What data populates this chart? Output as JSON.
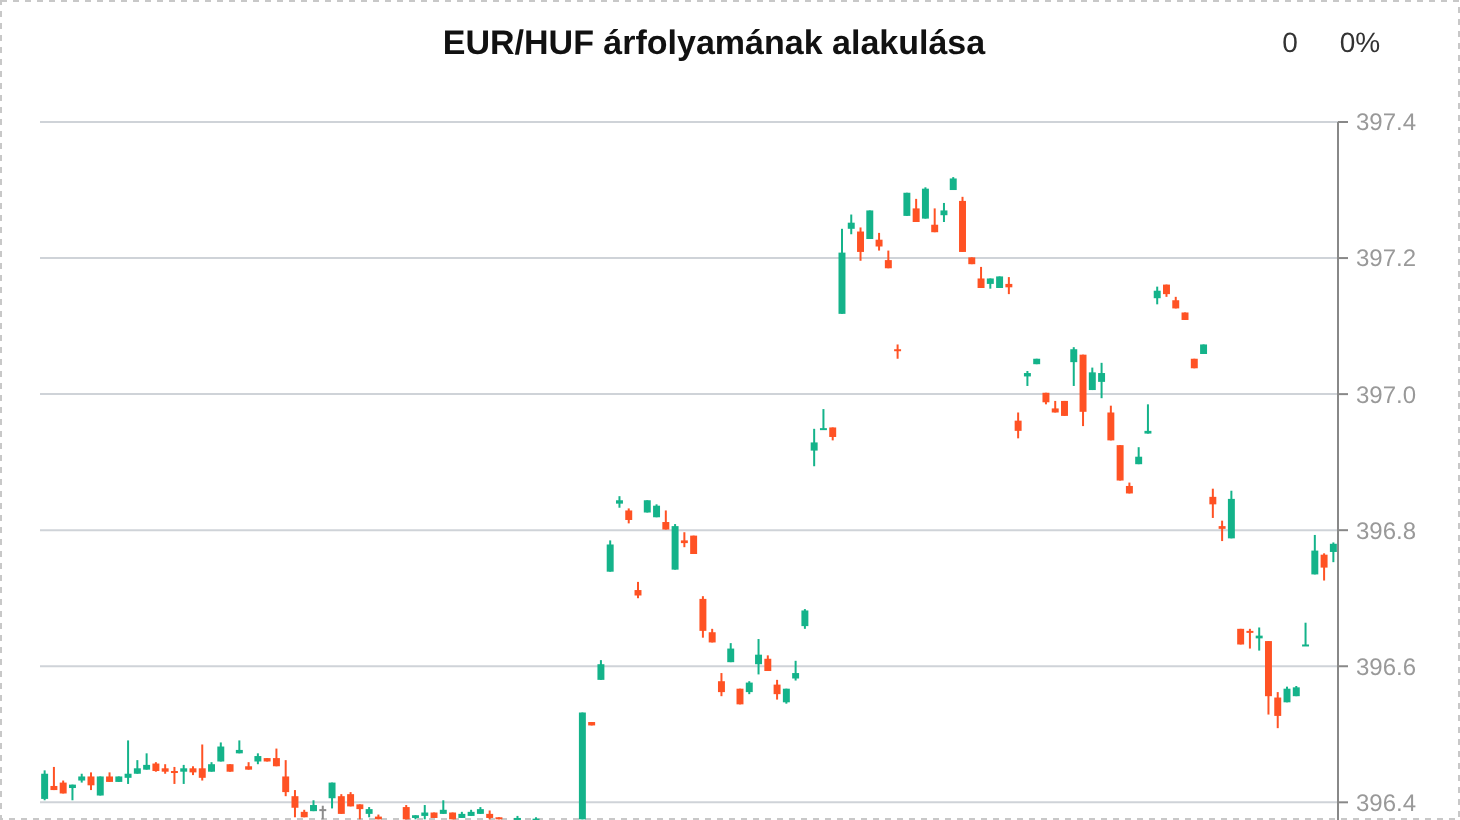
{
  "chart_data": {
    "type": "candlestick",
    "title": "EUR/HUF árfolyamának alakulása",
    "annotations": [
      "0",
      "0%"
    ],
    "categories": [
      null,
      null,
      null,
      null,
      null,
      null,
      null,
      null,
      null,
      null,
      null,
      null,
      null,
      null,
      null,
      null,
      null,
      null,
      null,
      null,
      null,
      null,
      null,
      null,
      null,
      null,
      null,
      null,
      null,
      null,
      null,
      null,
      null,
      null,
      null,
      null,
      null,
      null,
      null,
      null,
      null,
      null,
      null,
      null,
      null,
      null,
      null,
      null,
      null,
      null,
      null,
      null,
      null,
      null,
      null,
      null,
      null,
      null,
      null,
      null,
      null,
      null,
      null,
      null,
      null,
      null,
      null,
      null,
      null,
      null,
      null,
      null,
      null,
      null,
      null,
      null,
      null,
      null,
      null,
      null,
      null,
      null,
      null,
      null,
      null,
      null,
      null,
      null,
      null,
      null,
      null,
      null,
      null,
      null,
      null,
      null,
      null,
      null,
      null,
      null,
      null,
      null,
      null,
      null,
      null,
      null,
      null,
      null,
      null,
      null,
      null,
      null,
      null,
      null,
      null,
      null,
      null,
      null,
      null,
      null,
      null,
      null,
      null,
      null,
      null,
      null,
      null,
      null,
      null,
      null,
      null,
      null,
      null,
      null,
      null,
      null,
      null,
      null,
      null,
      null
    ],
    "colors": [
      "#14b38a",
      "#ff5224",
      "#ff5224",
      "#14b38a",
      "#14b38a",
      "#ff5224",
      "#14b38a",
      "#ff5224",
      "#14b38a",
      "#14b38a",
      "#14b38a",
      "#14b38a",
      "#ff5224",
      "#ff5224",
      "#ff5224",
      "#14b38a",
      "#ff5224",
      "#ff5224",
      "#14b38a",
      "#14b38a",
      "#ff5224",
      "#14b38a",
      "#ff5224",
      "#14b38a",
      "#ff5224",
      "#ff5224",
      "#ff5224",
      "#ff5224",
      "#ff5224",
      "#14b38a",
      "#8c8c8c",
      "#14b38a",
      "#ff5224",
      "#ff5224",
      "#ff5224",
      "#14b38a",
      "#ff5224",
      null,
      null,
      "#ff5224",
      "#14b38a",
      "#14b38a",
      "#ff5224",
      "#14b38a",
      "#ff5224",
      "#14b38a",
      "#14b38a",
      "#14b38a",
      "#ff5224",
      "#ff5224",
      null,
      "#14b38a",
      null,
      "#14b38a",
      null,
      null,
      null,
      null,
      "#14b38a",
      "#ff5224",
      "#14b38a",
      "#14b38a",
      "#14b38a",
      "#ff5224",
      "#ff5224",
      "#14b38a",
      "#14b38a",
      "#ff5224",
      "#14b38a",
      "#ff5224",
      "#ff5224",
      "#ff5224",
      "#ff5224",
      "#ff5224",
      "#14b38a",
      "#ff5224",
      "#14b38a",
      "#14b38a",
      "#ff5224",
      "#ff5224",
      "#14b38a",
      "#14b38a",
      "#14b38a",
      "#14b38a",
      "#14b38a",
      "#ff5224",
      "#14b38a",
      "#14b38a",
      "#ff5224",
      "#14b38a",
      "#ff5224",
      "#ff5224",
      "#ff5224",
      "#14b38a",
      "#ff5224",
      "#14b38a",
      "#ff5224",
      "#14b38a",
      "#14b38a",
      "#ff5224",
      "#ff5224",
      "#ff5224",
      "#14b38a",
      "#14b38a",
      "#ff5224",
      "#ff5224",
      "#14b38a",
      "#14b38a",
      "#ff5224",
      "#ff5224",
      "#ff5224",
      "#14b38a",
      "#ff5224",
      "#14b38a",
      "#14b38a",
      "#ff5224",
      "#ff5224",
      "#ff5224",
      "#14b38a",
      "#14b38a",
      "#14b38a",
      "#ff5224",
      "#ff5224",
      "#ff5224",
      "#ff5224",
      "#14b38a",
      "#ff5224",
      "#ff5224",
      "#14b38a",
      "#ff5224",
      "#ff5224",
      "#14b38a",
      "#ff5224",
      "#ff5224",
      "#14b38a",
      "#14b38a",
      "#14b38a",
      "#14b38a",
      "#ff5224",
      "#14b38a"
    ],
    "ohlc": [
      [
        396.405,
        396.447,
        396.403,
        396.442
      ],
      [
        396.424,
        396.452,
        396.418,
        396.418
      ],
      [
        396.429,
        396.432,
        396.413,
        396.413
      ],
      [
        396.421,
        396.426,
        396.403,
        396.426
      ],
      [
        396.432,
        396.442,
        396.429,
        396.438
      ],
      [
        396.438,
        396.444,
        396.418,
        396.425
      ],
      [
        396.41,
        396.438,
        396.41,
        396.438
      ],
      [
        396.438,
        396.444,
        396.43,
        396.43
      ],
      [
        396.43,
        396.438,
        396.43,
        396.438
      ],
      [
        396.436,
        396.491,
        396.427,
        396.442
      ],
      [
        396.442,
        396.462,
        396.442,
        396.45
      ],
      [
        396.448,
        396.472,
        396.448,
        396.455
      ],
      [
        396.457,
        396.459,
        396.445,
        396.446
      ],
      [
        396.45,
        396.456,
        396.442,
        396.445
      ],
      [
        396.446,
        396.452,
        396.427,
        396.444
      ],
      [
        396.445,
        396.455,
        396.427,
        396.45
      ],
      [
        396.45,
        396.453,
        396.44,
        396.444
      ],
      [
        396.45,
        396.485,
        396.432,
        396.436
      ],
      [
        396.445,
        396.459,
        396.445,
        396.456
      ],
      [
        396.46,
        396.488,
        396.46,
        396.482
      ],
      [
        396.456,
        396.456,
        396.445,
        396.445
      ],
      [
        396.472,
        396.491,
        396.472,
        396.477
      ],
      [
        396.453,
        396.459,
        396.448,
        396.448
      ],
      [
        396.46,
        396.472,
        396.456,
        396.468
      ],
      [
        396.465,
        396.465,
        396.46,
        396.46
      ],
      [
        396.465,
        396.479,
        396.453,
        396.453
      ],
      [
        396.438,
        396.462,
        396.409,
        396.415
      ],
      [
        396.409,
        396.418,
        396.378,
        396.392
      ],
      [
        396.386,
        396.389,
        396.378,
        396.378
      ],
      [
        396.387,
        396.403,
        396.387,
        396.396
      ],
      [
        396.39,
        396.395,
        396.375,
        396.39
      ],
      [
        396.406,
        396.429,
        396.391,
        396.429
      ],
      [
        396.409,
        396.412,
        396.383,
        396.383
      ],
      [
        396.412,
        396.415,
        396.394,
        396.394
      ],
      [
        396.397,
        396.397,
        396.375,
        396.39
      ],
      [
        396.383,
        396.393,
        396.378,
        396.39
      ],
      [
        396.379,
        396.382,
        396.375,
        396.375
      ],
      null,
      null,
      [
        396.393,
        396.396,
        396.375,
        396.375
      ],
      [
        396.377,
        396.381,
        396.375,
        396.381
      ],
      [
        396.38,
        396.396,
        396.375,
        396.385
      ],
      [
        396.385,
        396.385,
        396.377,
        396.377
      ],
      [
        396.383,
        396.403,
        396.383,
        396.389
      ],
      [
        396.385,
        396.385,
        396.375,
        396.375
      ],
      [
        396.377,
        396.386,
        396.377,
        396.383
      ],
      [
        396.38,
        396.389,
        396.38,
        396.386
      ],
      [
        396.383,
        396.393,
        396.383,
        396.39
      ],
      [
        396.383,
        396.388,
        396.375,
        396.377
      ],
      [
        396.378,
        396.378,
        396.375,
        396.375
      ],
      null,
      [
        396.375,
        396.38,
        396.375,
        396.377
      ],
      null,
      [
        396.375,
        396.378,
        396.375,
        396.376
      ],
      null,
      null,
      null,
      null,
      [
        396.375,
        396.532,
        396.375,
        396.532
      ],
      [
        396.518,
        396.518,
        396.513,
        396.513
      ],
      [
        396.58,
        396.609,
        396.58,
        396.603
      ],
      [
        396.739,
        396.785,
        396.739,
        396.779
      ],
      [
        396.839,
        396.85,
        396.833,
        396.844
      ],
      [
        396.829,
        396.832,
        396.81,
        396.815
      ],
      [
        396.712,
        396.724,
        396.7,
        396.704
      ],
      [
        396.826,
        396.844,
        396.826,
        396.844
      ],
      [
        396.819,
        396.838,
        396.819,
        396.836
      ],
      [
        396.812,
        396.829,
        396.801,
        396.801
      ],
      [
        396.742,
        396.809,
        396.742,
        396.806
      ],
      [
        396.785,
        396.797,
        396.775,
        396.781
      ],
      [
        396.792,
        396.792,
        396.765,
        396.765
      ],
      [
        396.699,
        396.703,
        396.642,
        396.652
      ],
      [
        396.65,
        396.655,
        396.635,
        396.635
      ],
      [
        396.578,
        396.59,
        396.556,
        396.562
      ],
      [
        396.606,
        396.634,
        396.606,
        396.626
      ],
      [
        396.567,
        396.567,
        396.544,
        396.544
      ],
      [
        396.562,
        396.578,
        396.559,
        396.576
      ],
      [
        396.603,
        396.64,
        396.588,
        396.617
      ],
      [
        396.611,
        396.616,
        396.593,
        396.593
      ],
      [
        396.573,
        396.58,
        396.551,
        396.559
      ],
      [
        396.547,
        396.567,
        396.545,
        396.567
      ],
      [
        396.582,
        396.608,
        396.579,
        396.59
      ],
      [
        396.659,
        396.684,
        396.655,
        396.682
      ],
      [
        396.917,
        396.949,
        396.894,
        396.929
      ],
      [
        396.948,
        396.978,
        396.948,
        396.95
      ],
      [
        396.951,
        396.951,
        396.932,
        396.937
      ],
      [
        397.118,
        397.243,
        397.118,
        397.208
      ],
      [
        397.243,
        397.264,
        397.235,
        397.252
      ],
      [
        397.239,
        397.245,
        397.196,
        397.209
      ],
      [
        397.228,
        397.27,
        397.228,
        397.27
      ],
      [
        397.227,
        397.237,
        397.211,
        397.217
      ],
      [
        397.197,
        397.211,
        397.185,
        397.185
      ],
      [
        397.066,
        397.073,
        397.052,
        397.064
      ],
      [
        397.262,
        397.296,
        397.262,
        397.296
      ],
      [
        397.273,
        397.287,
        397.253,
        397.253
      ],
      [
        397.258,
        397.304,
        397.258,
        397.302
      ],
      [
        397.249,
        397.273,
        397.238,
        397.238
      ],
      [
        397.263,
        397.281,
        397.253,
        397.27
      ],
      [
        397.3,
        397.319,
        397.3,
        397.317
      ],
      [
        397.284,
        397.29,
        397.209,
        397.209
      ],
      [
        397.201,
        397.201,
        397.191,
        397.191
      ],
      [
        397.17,
        397.187,
        397.156,
        397.156
      ],
      [
        397.162,
        397.17,
        397.155,
        397.17
      ],
      [
        397.156,
        397.173,
        397.156,
        397.173
      ],
      [
        397.162,
        397.172,
        397.147,
        397.157
      ],
      [
        396.961,
        396.973,
        396.935,
        396.946
      ],
      [
        397.026,
        397.034,
        397.012,
        397.031
      ],
      [
        397.044,
        397.052,
        397.044,
        397.052
      ],
      [
        397.002,
        397.002,
        396.985,
        396.988
      ],
      [
        396.979,
        396.99,
        396.973,
        396.973
      ],
      [
        396.99,
        396.99,
        396.968,
        396.968
      ],
      [
        397.047,
        397.069,
        397.012,
        397.066
      ],
      [
        397.058,
        397.058,
        396.953,
        396.974
      ],
      [
        397.006,
        397.039,
        397.006,
        397.032
      ],
      [
        397.018,
        397.046,
        396.994,
        397.031
      ],
      [
        396.973,
        396.983,
        396.932,
        396.932
      ],
      [
        396.925,
        396.925,
        396.873,
        396.873
      ],
      [
        396.865,
        396.87,
        396.854,
        396.854
      ],
      [
        396.897,
        396.922,
        396.897,
        396.908
      ],
      [
        396.942,
        396.985,
        396.942,
        396.946
      ],
      [
        397.141,
        397.158,
        397.132,
        397.152
      ],
      [
        397.161,
        397.161,
        397.143,
        397.147
      ],
      [
        397.138,
        397.143,
        397.126,
        397.126
      ],
      [
        397.12,
        397.12,
        397.109,
        397.109
      ],
      [
        397.052,
        397.052,
        397.038,
        397.038
      ],
      [
        397.059,
        397.073,
        397.059,
        397.073
      ],
      [
        396.849,
        396.861,
        396.818,
        396.838
      ],
      [
        396.806,
        396.814,
        396.784,
        396.802
      ],
      [
        396.788,
        396.858,
        396.788,
        396.846
      ],
      [
        396.655,
        396.655,
        396.632,
        396.632
      ],
      [
        396.652,
        396.655,
        396.626,
        396.65
      ],
      [
        396.641,
        396.657,
        396.623,
        396.645
      ],
      [
        396.637,
        396.637,
        396.529,
        396.556
      ],
      [
        396.554,
        396.562,
        396.509,
        396.527
      ],
      [
        396.547,
        396.57,
        396.547,
        396.567
      ],
      [
        396.556,
        396.571,
        396.556,
        396.569
      ],
      [
        396.63,
        396.664,
        396.63,
        396.632
      ],
      [
        396.735,
        396.793,
        396.735,
        396.77
      ],
      [
        396.764,
        396.766,
        396.726,
        396.745
      ],
      [
        396.768,
        396.782,
        396.753,
        396.78
      ]
    ],
    "ylim": [
      396.374,
      397.4
    ],
    "yticks": [
      396.4,
      396.6,
      396.8,
      {
        "value": 397,
        "label": "397.0"
      },
      397.2,
      397.4
    ],
    "grid": "y"
  }
}
